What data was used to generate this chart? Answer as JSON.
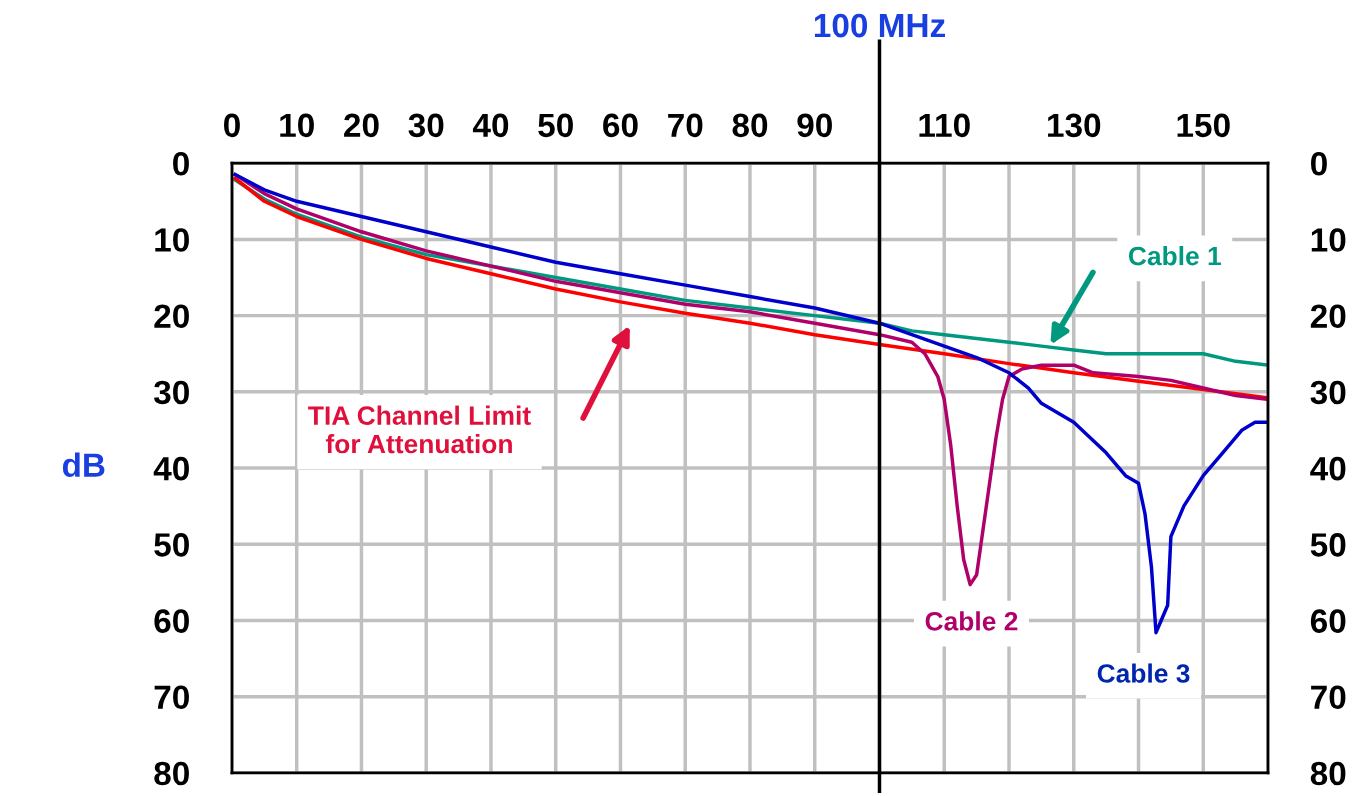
{
  "chart_data": {
    "type": "line",
    "ylabel": "dB",
    "xlim": [
      0,
      160
    ],
    "xticks": [
      0,
      10,
      20,
      30,
      40,
      50,
      60,
      70,
      80,
      90,
      {
        "value": 100,
        "label": null
      },
      110,
      {
        "value": 120,
        "label": null
      },
      130,
      {
        "value": 140,
        "label": null
      },
      150,
      {
        "value": 160,
        "label": null
      }
    ],
    "ylim": [
      80,
      0
    ],
    "yticks": [
      0,
      10,
      20,
      30,
      40,
      50,
      60,
      70,
      80
    ],
    "y2lim": [
      80,
      0
    ],
    "y2ticks": [
      0,
      10,
      20,
      30,
      40,
      50,
      60,
      70,
      80
    ],
    "grid": true,
    "legend": false,
    "marker": "none",
    "line_style": "solid",
    "ref_lines": [
      {
        "axis": "x",
        "value": 100,
        "label": "100 MHz",
        "color": "#000000"
      }
    ],
    "series": [
      {
        "color": "#009980",
        "x": [
          0.5,
          5,
          10,
          20,
          30,
          40,
          50,
          60,
          70,
          80,
          90,
          100,
          105,
          110,
          120,
          125,
          130,
          135,
          140,
          145,
          150,
          155,
          160
        ],
        "values": [
          2.2,
          4.7,
          6.7,
          9.7,
          12,
          13.5,
          15,
          16.5,
          18,
          19,
          20,
          21,
          22,
          22.5,
          23.5,
          24,
          24.5,
          25,
          25,
          25,
          25,
          26,
          26.5
        ]
      },
      {
        "color": "#ff0000",
        "x": [
          0.5,
          5,
          10,
          20,
          30,
          40,
          50,
          60,
          70,
          80,
          90,
          100,
          110,
          120,
          130,
          140,
          150,
          160
        ],
        "values": [
          2,
          5,
          7,
          10,
          12.5,
          14.5,
          16.5,
          18.2,
          19.7,
          21,
          22.5,
          23.8,
          25,
          26.3,
          27.5,
          28.6,
          29.7,
          30.8
        ]
      },
      {
        "color": "#b0006a",
        "x": [
          0.5,
          5,
          10,
          20,
          30,
          40,
          50,
          60,
          70,
          80,
          90,
          100,
          105,
          107,
          109,
          110,
          111,
          112,
          113,
          114,
          115,
          116,
          117,
          118,
          119,
          120,
          122,
          125,
          130,
          133,
          140,
          145,
          150,
          155,
          160
        ],
        "values": [
          1.5,
          4,
          6,
          9,
          11.5,
          13.5,
          15.5,
          17,
          18.5,
          19.5,
          21,
          22.5,
          23.5,
          25,
          28,
          31,
          37,
          45,
          52,
          55.3,
          54,
          48,
          42,
          36,
          31,
          28,
          27,
          26.5,
          26.5,
          27.5,
          28,
          28.5,
          29.5,
          30.5,
          31
        ]
      },
      {
        "color": "#0000cc",
        "x": [
          0.5,
          5,
          10,
          20,
          30,
          40,
          50,
          60,
          70,
          80,
          90,
          100,
          105,
          110,
          115,
          120,
          123,
          125,
          130,
          135,
          138,
          140,
          141,
          142,
          142.7,
          143.5,
          144.5,
          145,
          147,
          150,
          153,
          156,
          158,
          160
        ],
        "values": [
          1.5,
          3.5,
          5,
          7,
          9,
          11,
          13,
          14.5,
          16,
          17.5,
          19,
          21,
          22.5,
          24,
          25.5,
          27.5,
          29.5,
          31.5,
          34,
          38,
          41,
          42,
          46,
          53,
          61.6,
          60,
          58,
          49,
          45,
          41,
          38,
          35,
          34,
          34
        ]
      }
    ],
    "annotations": [
      "Cable 1",
      "TIA Channel Limit\nfor Attenuation",
      {
        "text": "Cable 2",
        "x": 114.2,
        "y": 55.3
      },
      {
        "text": "Cable 3",
        "x": 142.7,
        "y": 61.6
      }
    ]
  }
}
